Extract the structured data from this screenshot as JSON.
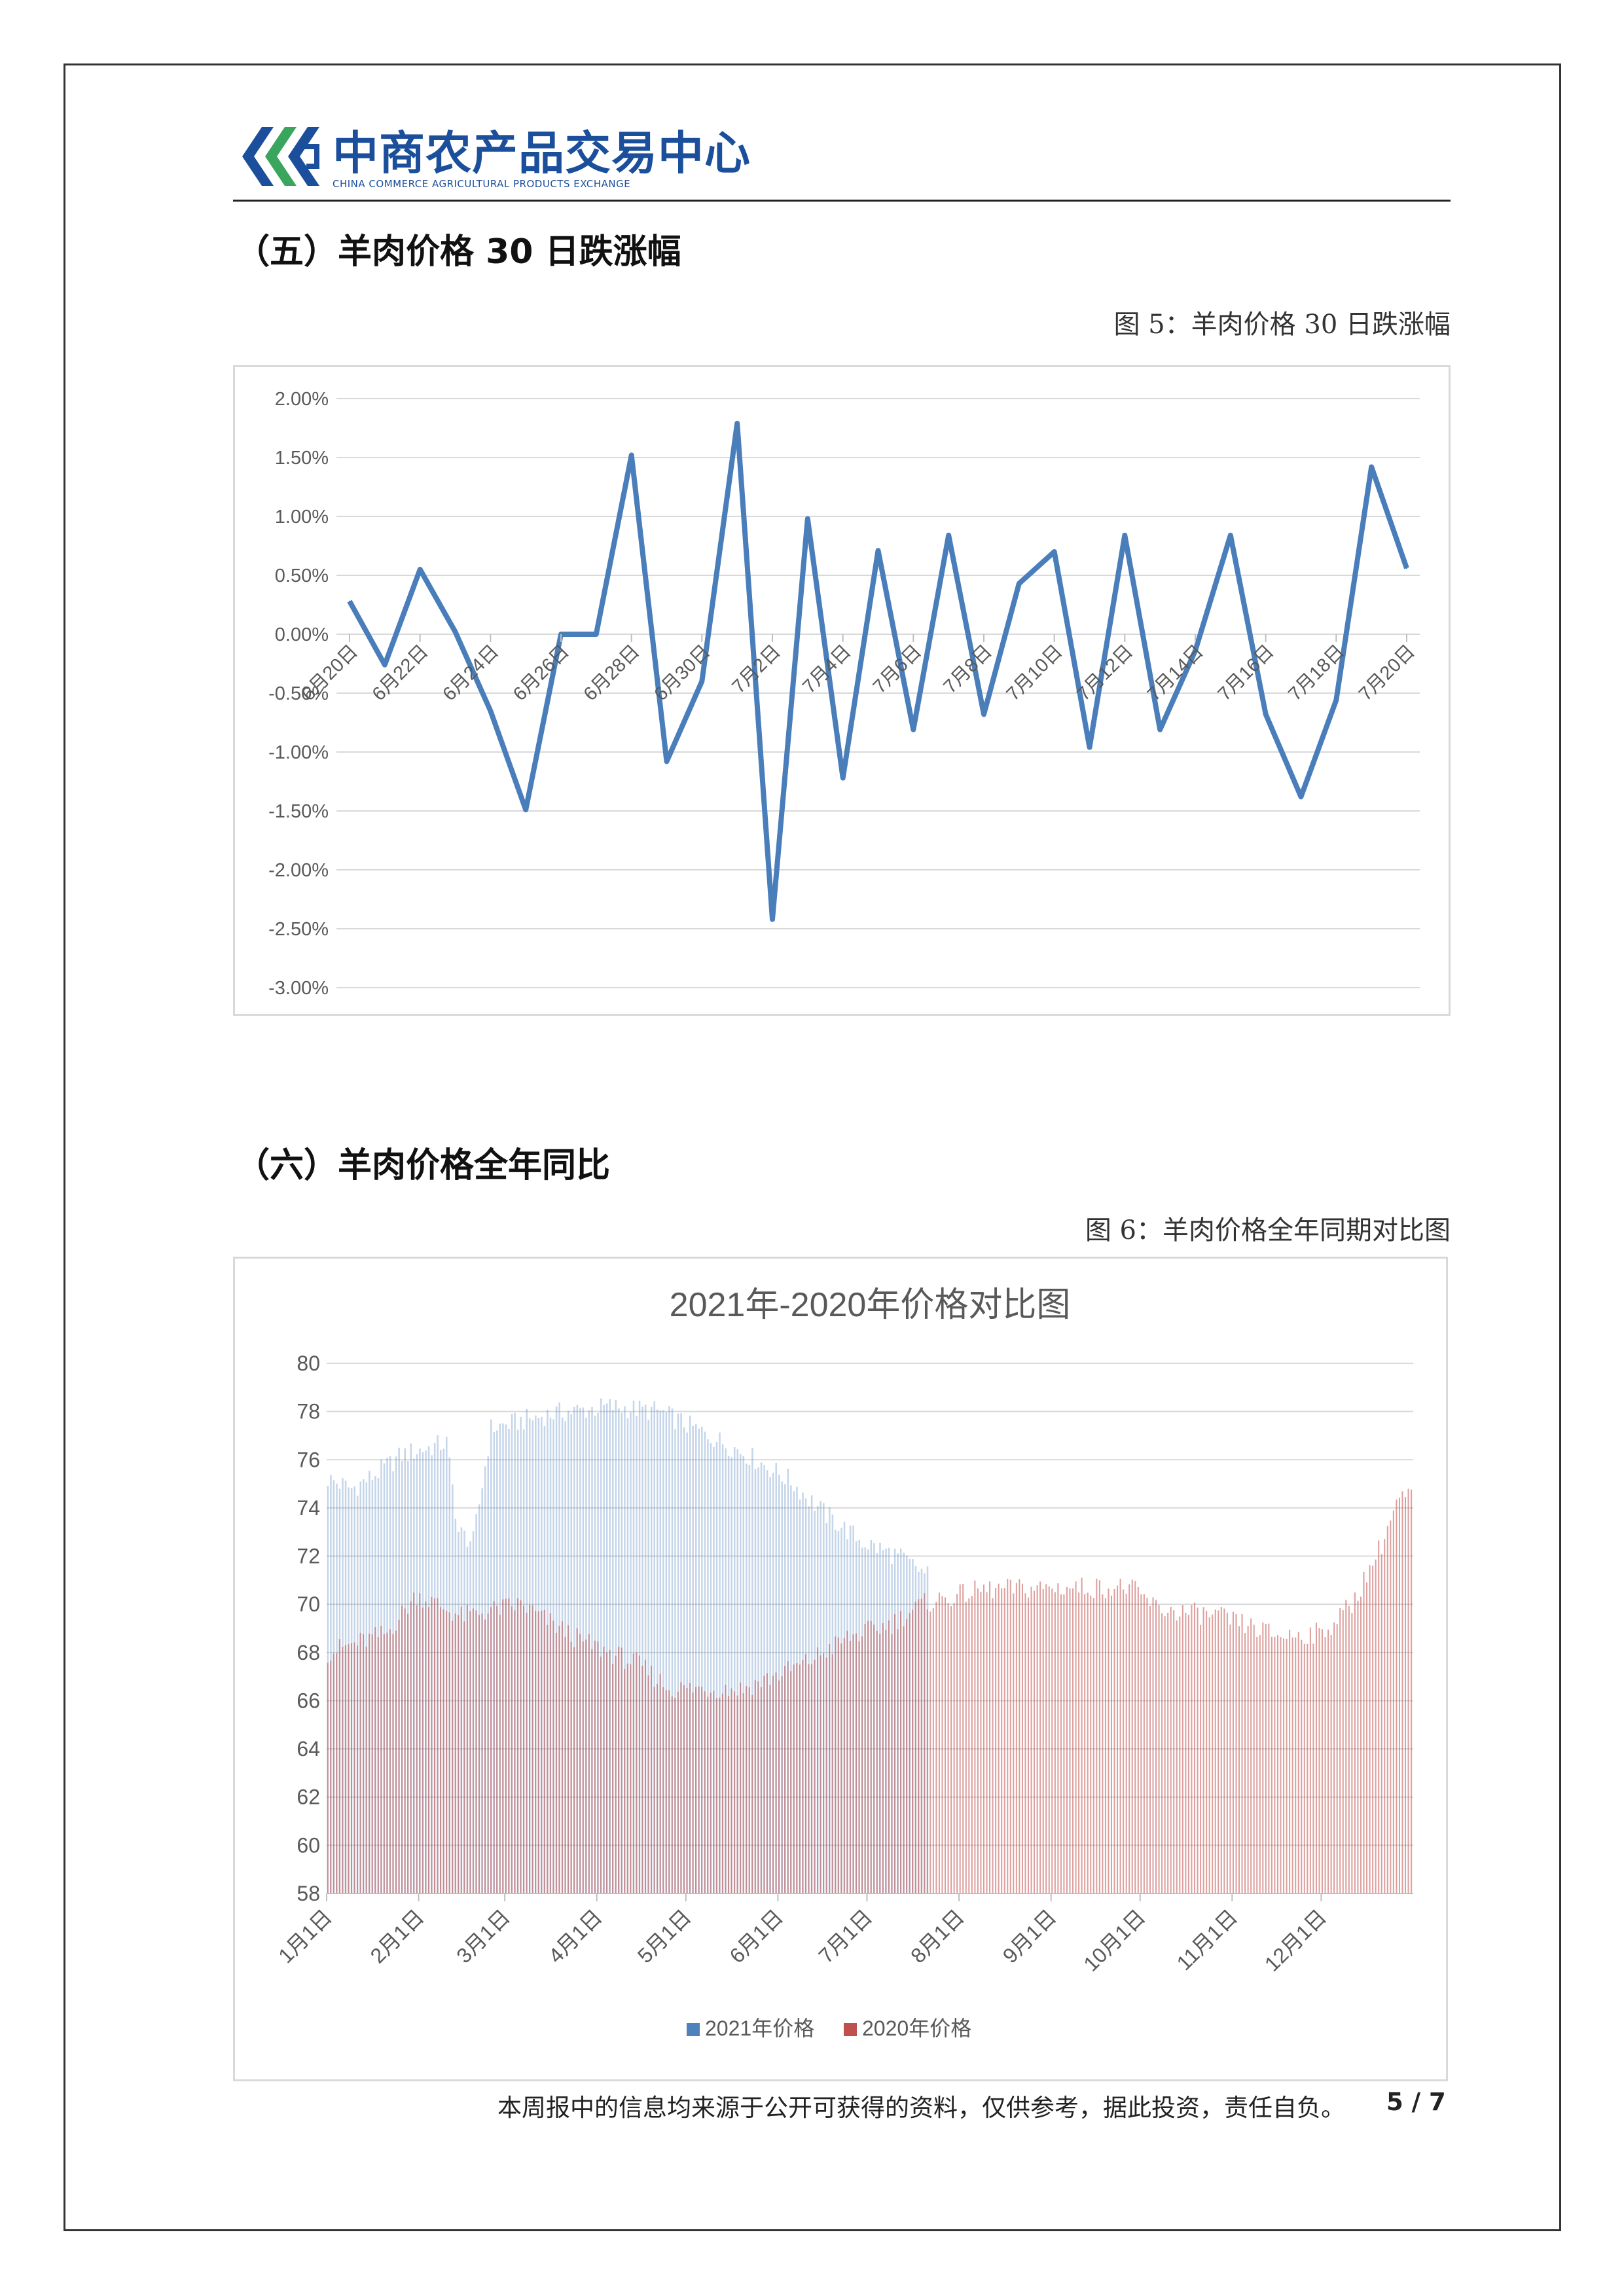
{
  "header": {
    "logo_cn": "中商农产品交易中心",
    "logo_en": "CHINA COMMERCE AGRICULTURAL PRODUCTS EXCHANGE",
    "logo_color": "#1b4f9c",
    "logo_accent": "#3aa55c"
  },
  "section5": {
    "title": "（五）羊肉价格 30 日跌涨幅",
    "caption": "图  5：羊肉价格 30 日跌涨幅"
  },
  "section6": {
    "title": "（六）羊肉价格全年同比",
    "caption": "图 6：羊肉价格全年同期对比图"
  },
  "chart_data": [
    {
      "type": "line",
      "title": "",
      "color": "#4a7ebb",
      "ylim": [
        -0.03,
        0.02
      ],
      "yticks": [
        "2.00%",
        "1.50%",
        "1.00%",
        "0.50%",
        "0.00%",
        "-0.50%",
        "-1.00%",
        "-1.50%",
        "-2.00%",
        "-2.50%",
        "-3.00%"
      ],
      "xticks": [
        "6月20日",
        "6月22日",
        "6月24日",
        "6月26日",
        "6月28日",
        "6月30日",
        "7月2日",
        "7月4日",
        "7月6日",
        "7月8日",
        "7月10日",
        "7月12日",
        "7月14日",
        "7月16日",
        "7月18日",
        "7月20日"
      ],
      "values": [
        0.0028,
        -0.0026,
        0.0055,
        0.0002,
        -0.0065,
        -0.0149,
        0.0,
        0.0,
        0.0152,
        -0.0108,
        -0.004,
        0.0179,
        -0.0242,
        0.0098,
        -0.0122,
        0.0071,
        -0.0081,
        0.0084,
        -0.0068,
        0.0043,
        0.007,
        -0.0096,
        0.0084,
        -0.0081,
        -0.0014,
        0.0084,
        -0.0068,
        -0.0138,
        -0.0056,
        0.0142,
        0.0056
      ],
      "grid": true
    },
    {
      "type": "bar",
      "title": "2021年-2020年价格对比图",
      "ylim": [
        58,
        80
      ],
      "yticks": [
        "80",
        "78",
        "76",
        "74",
        "72",
        "70",
        "68",
        "66",
        "64",
        "62",
        "60",
        "58"
      ],
      "xticks": [
        "1月1日",
        "2月1日",
        "3月1日",
        "4月1日",
        "5月1日",
        "6月1日",
        "7月1日",
        "8月1日",
        "9月1日",
        "10月1日",
        "11月1日",
        "12月1日"
      ],
      "grid": true,
      "legend": "bottom",
      "series": [
        {
          "name": "2021年价格",
          "color": "#4f81bd",
          "days": 203,
          "anchors": [
            [
              0,
              75.2
            ],
            [
              8,
              74.8
            ],
            [
              15,
              75.3
            ],
            [
              25,
              76.2
            ],
            [
              40,
              76.7
            ],
            [
              44,
              73.0
            ],
            [
              49,
              72.6
            ],
            [
              55,
              77.3
            ],
            [
              75,
              77.9
            ],
            [
              95,
              78.2
            ],
            [
              112,
              78.0
            ],
            [
              125,
              77.2
            ],
            [
              140,
              76.3
            ],
            [
              155,
              75.2
            ],
            [
              168,
              73.7
            ],
            [
              180,
              72.6
            ],
            [
              192,
              72.0
            ],
            [
              202,
              71.2
            ]
          ]
        },
        {
          "name": "2020年价格",
          "color": "#c0504d",
          "days": 366,
          "anchors": [
            [
              0,
              68.0
            ],
            [
              20,
              68.8
            ],
            [
              30,
              70.4
            ],
            [
              45,
              69.5
            ],
            [
              65,
              70.0
            ],
            [
              85,
              68.5
            ],
            [
              105,
              67.5
            ],
            [
              115,
              66.5
            ],
            [
              140,
              66.5
            ],
            [
              160,
              67.5
            ],
            [
              175,
              68.6
            ],
            [
              190,
              69.2
            ],
            [
              200,
              70.0
            ],
            [
              220,
              70.6
            ],
            [
              245,
              70.7
            ],
            [
              270,
              70.7
            ],
            [
              280,
              69.8
            ],
            [
              300,
              69.5
            ],
            [
              320,
              68.7
            ],
            [
              335,
              68.8
            ],
            [
              345,
              70.0
            ],
            [
              355,
              72.5
            ],
            [
              360,
              74.2
            ],
            [
              365,
              74.6
            ]
          ]
        }
      ]
    }
  ],
  "footer": {
    "disclaimer": "本周报中的信息均来源于公开可获得的资料，仅供参考，据此投资，责任自负。",
    "page": "5 / 7"
  }
}
